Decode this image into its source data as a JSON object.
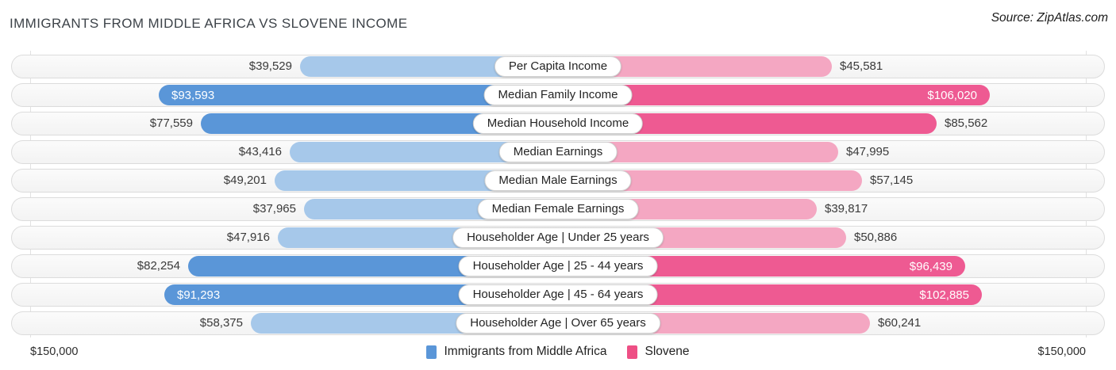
{
  "title": "IMMIGRANTS FROM MIDDLE AFRICA VS SLOVENE INCOME",
  "source": "Source: ZipAtlas.com",
  "colors": {
    "blue": "#5a96d8",
    "blue_light": "#a6c8ea",
    "pink": "#ee5a92",
    "pink_light": "#f4a7c2",
    "track_border": "#dcdcdc",
    "gridline": "#e2e2e2"
  },
  "axis": {
    "left_max_label": "$150,000",
    "right_max_label": "$150,000",
    "max_value": 150000
  },
  "legend": [
    {
      "label": "Immigrants from Middle Africa",
      "color": "#5a96d8"
    },
    {
      "label": "Slovene",
      "color": "#ee4f85"
    }
  ],
  "chart_data": {
    "type": "bar",
    "orientation": "diverging-horizontal",
    "title": "Immigrants from Middle Africa vs Slovene Income",
    "xlim_each_side": [
      0,
      150000
    ],
    "categories": [
      "Per Capita Income",
      "Median Family Income",
      "Median Household Income",
      "Median Earnings",
      "Median Male Earnings",
      "Median Female Earnings",
      "Householder Age | Under 25 years",
      "Householder Age | 25 - 44 years",
      "Householder Age | 45 - 64 years",
      "Householder Age | Over 65 years"
    ],
    "series": [
      {
        "name": "Immigrants from Middle Africa",
        "values": [
          39529,
          93593,
          77559,
          43416,
          49201,
          37965,
          47916,
          82254,
          91293,
          58375
        ]
      },
      {
        "name": "Slovene",
        "values": [
          45581,
          106020,
          85562,
          47995,
          57145,
          39817,
          50886,
          96439,
          102885,
          60241
        ]
      }
    ],
    "rows": [
      {
        "category": "Per Capita Income",
        "left": {
          "value": 39529,
          "label": "$39,529",
          "inside": false,
          "emphasis": false
        },
        "right": {
          "value": 45581,
          "label": "$45,581",
          "inside": false,
          "emphasis": false
        }
      },
      {
        "category": "Median Family Income",
        "left": {
          "value": 93593,
          "label": "$93,593",
          "inside": true,
          "emphasis": true
        },
        "right": {
          "value": 106020,
          "label": "$106,020",
          "inside": true,
          "emphasis": true
        }
      },
      {
        "category": "Median Household Income",
        "left": {
          "value": 77559,
          "label": "$77,559",
          "inside": false,
          "emphasis": true
        },
        "right": {
          "value": 85562,
          "label": "$85,562",
          "inside": false,
          "emphasis": true
        }
      },
      {
        "category": "Median Earnings",
        "left": {
          "value": 43416,
          "label": "$43,416",
          "inside": false,
          "emphasis": false
        },
        "right": {
          "value": 47995,
          "label": "$47,995",
          "inside": false,
          "emphasis": false
        }
      },
      {
        "category": "Median Male Earnings",
        "left": {
          "value": 49201,
          "label": "$49,201",
          "inside": false,
          "emphasis": false
        },
        "right": {
          "value": 57145,
          "label": "$57,145",
          "inside": false,
          "emphasis": false
        }
      },
      {
        "category": "Median Female Earnings",
        "left": {
          "value": 37965,
          "label": "$37,965",
          "inside": false,
          "emphasis": false
        },
        "right": {
          "value": 39817,
          "label": "$39,817",
          "inside": false,
          "emphasis": false
        }
      },
      {
        "category": "Householder Age | Under 25 years",
        "left": {
          "value": 47916,
          "label": "$47,916",
          "inside": false,
          "emphasis": false
        },
        "right": {
          "value": 50886,
          "label": "$50,886",
          "inside": false,
          "emphasis": false
        }
      },
      {
        "category": "Householder Age | 25 - 44 years",
        "left": {
          "value": 82254,
          "label": "$82,254",
          "inside": false,
          "emphasis": true
        },
        "right": {
          "value": 96439,
          "label": "$96,439",
          "inside": true,
          "emphasis": true
        }
      },
      {
        "category": "Householder Age | 45 - 64 years",
        "left": {
          "value": 91293,
          "label": "$91,293",
          "inside": true,
          "emphasis": true
        },
        "right": {
          "value": 102885,
          "label": "$102,885",
          "inside": true,
          "emphasis": true
        }
      },
      {
        "category": "Householder Age | Over 65 years",
        "left": {
          "value": 58375,
          "label": "$58,375",
          "inside": false,
          "emphasis": false
        },
        "right": {
          "value": 60241,
          "label": "$60,241",
          "inside": false,
          "emphasis": false
        }
      }
    ]
  }
}
